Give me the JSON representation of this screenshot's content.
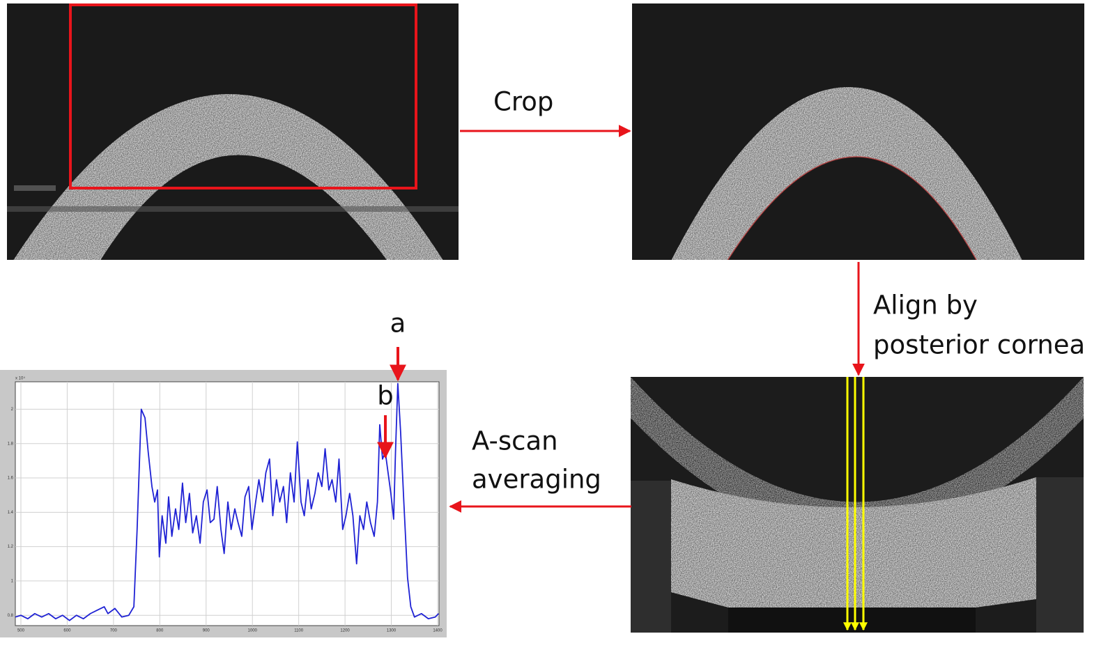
{
  "steps": {
    "crop": "Crop",
    "align_line1": "Align by",
    "align_line2": "posterior cornea",
    "averaging_line1": "A-scan",
    "averaging_line2": "averaging"
  },
  "annotations": {
    "a": "a",
    "b": "b"
  },
  "chart_data": {
    "type": "line",
    "y_multiplier": "x 10⁴",
    "x": [
      488,
      500,
      515,
      530,
      545,
      560,
      575,
      590,
      605,
      620,
      635,
      650,
      665,
      680,
      688,
      703,
      718,
      733,
      744,
      751,
      760,
      768,
      775,
      783,
      789,
      795,
      799,
      805,
      813,
      819,
      826,
      834,
      841,
      849,
      856,
      864,
      871,
      879,
      887,
      894,
      902,
      909,
      917,
      924,
      932,
      939,
      947,
      954,
      962,
      969,
      977,
      984,
      992,
      999,
      1007,
      1014,
      1022,
      1029,
      1037,
      1044,
      1052,
      1059,
      1067,
      1074,
      1082,
      1090,
      1097,
      1105,
      1112,
      1120,
      1127,
      1135,
      1142,
      1150,
      1157,
      1165,
      1172,
      1180,
      1187,
      1195,
      1202,
      1210,
      1217,
      1225,
      1232,
      1240,
      1247,
      1255,
      1263,
      1270,
      1275,
      1281,
      1287,
      1293,
      1299,
      1305,
      1309,
      1314,
      1320,
      1327,
      1335,
      1342,
      1350,
      1365,
      1380,
      1395,
      1402
    ],
    "series": [
      {
        "color": "#1f22d4",
        "values": [
          0.79,
          0.8,
          0.78,
          0.81,
          0.79,
          0.81,
          0.78,
          0.8,
          0.77,
          0.8,
          0.78,
          0.81,
          0.83,
          0.85,
          0.81,
          0.84,
          0.79,
          0.8,
          0.85,
          1.3,
          2,
          1.95,
          1.75,
          1.55,
          1.46,
          1.53,
          1.14,
          1.38,
          1.22,
          1.49,
          1.26,
          1.42,
          1.3,
          1.57,
          1.34,
          1.51,
          1.28,
          1.38,
          1.22,
          1.46,
          1.53,
          1.34,
          1.36,
          1.55,
          1.3,
          1.16,
          1.46,
          1.3,
          1.42,
          1.34,
          1.26,
          1.49,
          1.55,
          1.3,
          1.46,
          1.59,
          1.46,
          1.63,
          1.71,
          1.38,
          1.59,
          1.46,
          1.55,
          1.34,
          1.63,
          1.46,
          1.81,
          1.46,
          1.38,
          1.59,
          1.42,
          1.51,
          1.63,
          1.55,
          1.77,
          1.53,
          1.59,
          1.46,
          1.71,
          1.3,
          1.38,
          1.51,
          1.38,
          1.1,
          1.38,
          1.3,
          1.46,
          1.34,
          1.26,
          1.46,
          1.91,
          1.71,
          1.75,
          1.63,
          1.51,
          1.36,
          1.75,
          2.15,
          1.87,
          1.46,
          1.02,
          0.85,
          0.79,
          0.81,
          0.78,
          0.79,
          0.81
        ]
      }
    ],
    "xlim": [
      488,
      1403
    ],
    "ylim": [
      0.74,
      2.16
    ],
    "xticks": [
      500,
      600,
      700,
      800,
      900,
      1000,
      1100,
      1200,
      1300,
      1400
    ],
    "yticks": [
      0.8,
      1,
      1.2,
      1.4,
      1.6,
      1.8,
      2
    ],
    "grid": true
  }
}
